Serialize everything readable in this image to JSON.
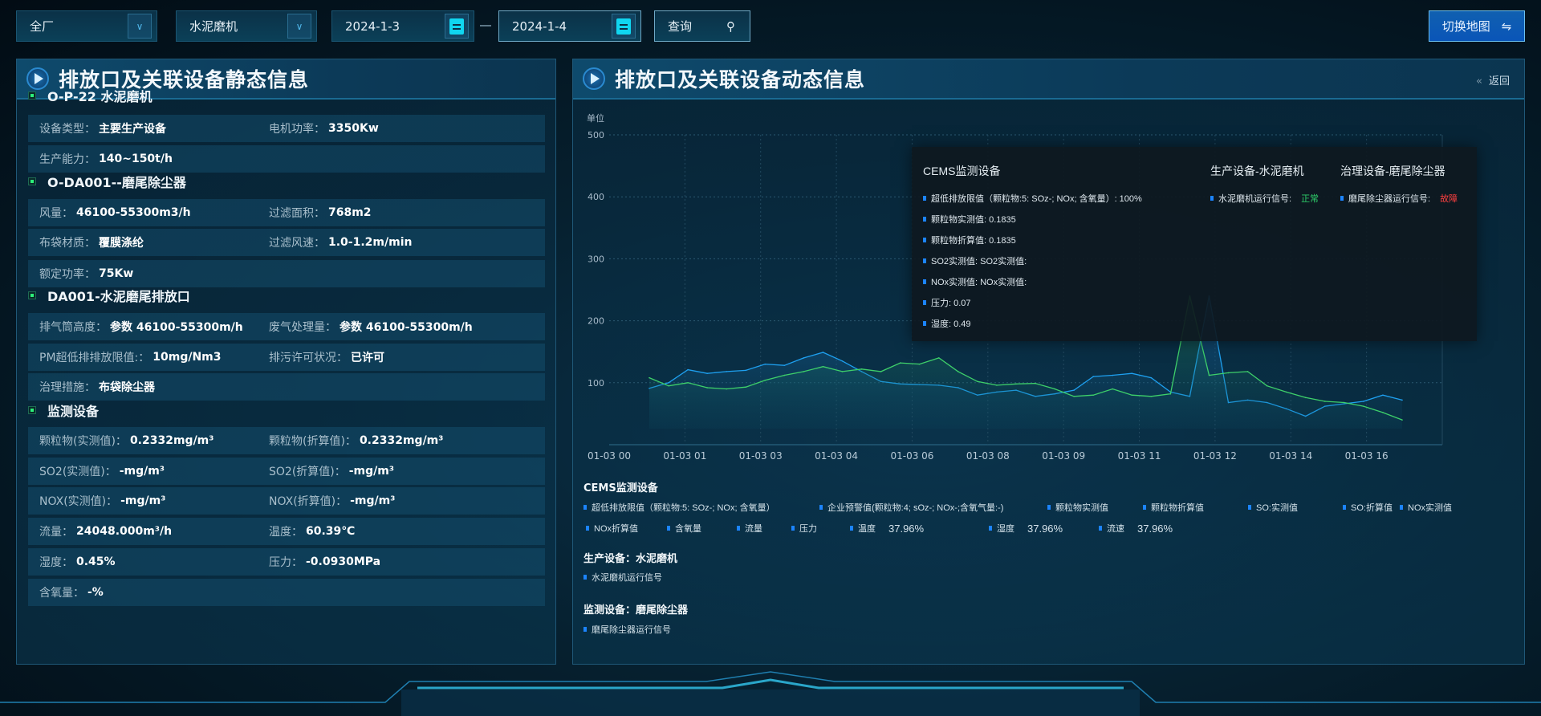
{
  "topbar": {
    "factory": "全厂",
    "device": "水泥磨机",
    "date_start": "2024-1-3",
    "date_end": "2024-1-4",
    "query_label": "查询",
    "switch_label": "切换地图"
  },
  "left": {
    "title": "排放口及关联设备静态信息",
    "sections": [
      {
        "title": "O-P-22 水泥磨机",
        "rows": [
          [
            [
              "设备类型：",
              "主要生产设备"
            ],
            [
              "电机功率：",
              "3350Kw"
            ]
          ],
          [
            [
              "生产能力：",
              "140~150t/h"
            ]
          ]
        ]
      },
      {
        "title": "O-DA001--磨尾除尘器",
        "rows": [
          [
            [
              "风量：",
              "46100-55300m3/h"
            ],
            [
              "过滤面积：",
              "768m2"
            ]
          ],
          [
            [
              "布袋材质：",
              "覆膜涤纶"
            ],
            [
              "过滤风速：",
              "1.0-1.2m/min"
            ]
          ],
          [
            [
              "额定功率：",
              "75Kw"
            ]
          ]
        ]
      },
      {
        "title": "DA001-水泥磨尾排放口",
        "rows": [
          [
            [
              "排气筒高度：",
              "参数 46100-55300m/h"
            ],
            [
              "废气处理量：",
              "参数 46100-55300m/h"
            ]
          ],
          [
            [
              "PM超低排排放限值:：",
              "10mg/Nm3"
            ],
            [
              "排污许可状况：",
              "已许可"
            ]
          ],
          [
            [
              "治理措施：",
              "布袋除尘器"
            ]
          ]
        ]
      },
      {
        "title": "监测设备",
        "rows": [
          [
            [
              "颗粒物(实测值)：",
              "0.2332mg/m³"
            ],
            [
              "颗粒物(折算值)：",
              "0.2332mg/m³"
            ]
          ],
          [
            [
              "SO2(实测值)：",
              "-mg/m³"
            ],
            [
              "SO2(折算值)：",
              "-mg/m³"
            ]
          ],
          [
            [
              "NOX(实测值)：",
              "-mg/m³"
            ],
            [
              "NOX(折算值)：",
              "-mg/m³"
            ]
          ],
          [
            [
              "流量：",
              "24048.000m³/h"
            ],
            [
              "温度：",
              "60.39℃"
            ]
          ],
          [
            [
              "湿度：",
              "0.45%"
            ],
            [
              "压力：",
              "-0.0930MPa"
            ]
          ],
          [
            [
              "含氧量：",
              "-%"
            ]
          ]
        ]
      }
    ]
  },
  "right": {
    "title": "排放口及关联设备动态信息",
    "back_label": "返回",
    "tooltip": {
      "col1_title": "CEMS监测设备",
      "col1_items": [
        "超低排放限值（颗粒物:5: SOz-; NOx; 含氧量）:   100%",
        "颗粒物实测值: 0.1835",
        "颗粒物折算值: 0.1835",
        "SO2实测值: SO2实测值:",
        "NOx实测值: NOx实测值:",
        "压力: 0.07",
        "湿度: 0.49"
      ],
      "col2_title": "生产设备-水泥磨机",
      "col2_label": "水泥磨机运行信号:",
      "col2_status": "正常",
      "col3_title": "治理设备-磨尾除尘器",
      "col3_label": "磨尾除尘器运行信号:",
      "col3_status": "故障"
    },
    "legend": {
      "cems_title": "CEMS监测设备",
      "cems_row1": [
        "超低排放限值（颗粒物:5: SOz-; NOx; 含氧量）",
        "企业预警值(颗粒物:4; sOz-; NOx-;含氧气量:-)",
        "颗粒物实测值",
        "颗粒物折算值",
        "SO:实测值",
        "SO:折算值",
        "NOx实测值"
      ],
      "cems_row2": [
        [
          "NOx折算值",
          ""
        ],
        [
          "含氧量",
          ""
        ],
        [
          "流量",
          ""
        ],
        [
          "压力",
          ""
        ],
        [
          "温度",
          "37.96%"
        ],
        [
          "湿度",
          "37.96%"
        ],
        [
          "流速",
          "37.96%"
        ]
      ],
      "prod_title": "生产设备：水泥磨机",
      "prod_item": "水泥磨机运行信号",
      "mon_title": "监测设备：磨尾除尘器",
      "mon_item": "磨尾除尘器运行信号"
    }
  },
  "colors": {
    "series_blue": "#1ea0f0",
    "series_green": "#3ed06a",
    "status_ok": "#2ed06a",
    "status_fault": "#ff4040",
    "accent": "#1c84ff"
  },
  "chart_data": {
    "type": "area",
    "y_unit_label": "单位",
    "ylim": [
      0,
      500
    ],
    "yticks": [
      100,
      200,
      300,
      400,
      500
    ],
    "xticks": [
      "01-03 00",
      "01-03 01",
      "01-03 03",
      "01-03 04",
      "01-03 06",
      "01-03 08",
      "01-03 09",
      "01-03 11",
      "01-03 12",
      "01-03 14",
      "01-03 16"
    ],
    "grid": true,
    "series": [
      {
        "color": "#1ea0f0",
        "values": [
          91,
          100,
          121,
          115,
          118,
          120,
          130,
          128,
          140,
          149,
          135,
          118,
          102,
          98,
          97,
          96,
          92,
          80,
          85,
          88,
          78,
          82,
          88,
          110,
          112,
          115,
          108,
          85,
          78,
          240,
          68,
          72,
          68,
          58,
          46,
          62,
          66,
          70,
          80,
          72
        ]
      },
      {
        "color": "#3ed06a",
        "values": [
          108,
          95,
          100,
          92,
          90,
          93,
          104,
          112,
          118,
          126,
          118,
          122,
          118,
          132,
          130,
          140,
          118,
          102,
          96,
          98,
          99,
          90,
          78,
          80,
          90,
          80,
          78,
          82,
          240,
          112,
          116,
          118,
          95,
          85,
          76,
          70,
          68,
          62,
          52,
          40
        ]
      }
    ]
  }
}
